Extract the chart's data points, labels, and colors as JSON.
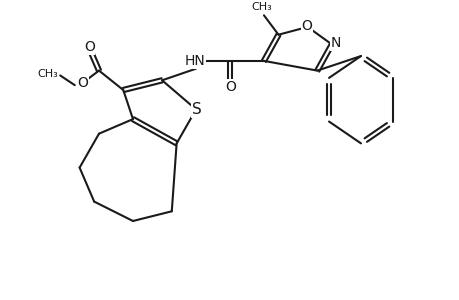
{
  "bg_color": "#ffffff",
  "line_color": "#1a1a1a",
  "line_width": 1.5,
  "font_size": 10,
  "figsize": [
    4.6,
    3.0
  ],
  "dpi": 100,
  "xlim": [
    0,
    46
  ],
  "ylim": [
    0,
    30
  ]
}
